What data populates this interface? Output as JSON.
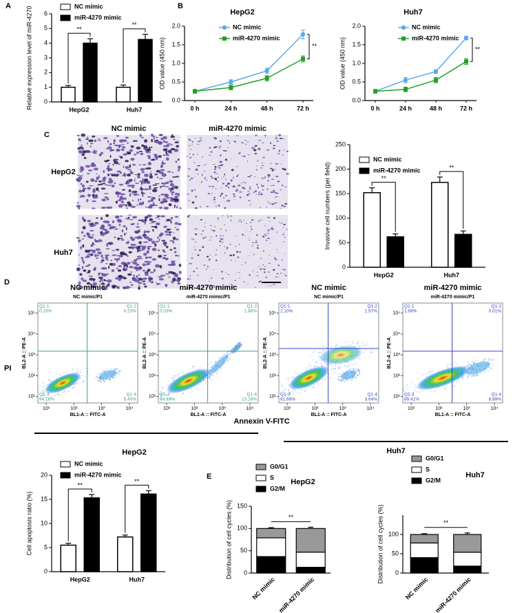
{
  "panel_labels": [
    "A",
    "B",
    "C",
    "D",
    "E"
  ],
  "invasion_images": {
    "columns": [
      "NC mimic",
      "miR-4270 mimic"
    ],
    "rows": [
      "HepG2",
      "Huh7"
    ]
  },
  "flow_axis_labels": {
    "y": "PI",
    "x": "Annexin V-FITC"
  },
  "flow_groups": [
    "HepG2",
    "Huh7"
  ],
  "chart_data": [
    {
      "type": "bar",
      "ylabel": "Relative expression level of miR-4270",
      "categories": [
        "HepG2",
        "Huh7"
      ],
      "series": [
        {
          "name": "NC mimic",
          "color": "#ffffff",
          "values": [
            1.0,
            1.0
          ],
          "errors": [
            0.12,
            0.15
          ]
        },
        {
          "name": "miR-4270 mimic",
          "color": "#000000",
          "values": [
            4.0,
            4.25
          ],
          "errors": [
            0.3,
            0.35
          ]
        }
      ],
      "ylim": [
        0,
        6
      ],
      "yticks": [
        0,
        1,
        2,
        3,
        4,
        5,
        6
      ],
      "significance": [
        "**",
        "**"
      ],
      "legend": "upper left"
    },
    {
      "type": "line",
      "title": "HepG2",
      "ylabel": "OD value (450 nm)",
      "categories": [
        "0 h",
        "24 h",
        "48 h",
        "72 h"
      ],
      "series": [
        {
          "name": "NC mimic",
          "color": "#5aa8ee",
          "marker": "circle",
          "values": [
            0.25,
            0.5,
            0.8,
            1.78
          ],
          "errors": [
            0.05,
            0.06,
            0.07,
            0.12
          ]
        },
        {
          "name": "miR-4270 mimic",
          "color": "#22a022",
          "marker": "square",
          "values": [
            0.25,
            0.35,
            0.6,
            1.12
          ],
          "errors": [
            0.05,
            0.06,
            0.07,
            0.08
          ]
        }
      ],
      "ylim": [
        0,
        2
      ],
      "yticks": [
        {
          "value": 0,
          "label": "0.0"
        },
        0.5,
        {
          "value": 1,
          "label": "1.0"
        },
        1.5,
        {
          "value": 2,
          "label": "2.0"
        }
      ],
      "significance": [
        "**"
      ],
      "legend": "upper left"
    },
    {
      "type": "line",
      "title": "Huh7",
      "ylabel": "OD value (450 nm)",
      "categories": [
        "0 h",
        "24 h",
        "48 h",
        "72 h"
      ],
      "series": [
        {
          "name": "NC mimic",
          "color": "#5aa8ee",
          "marker": "circle",
          "values": [
            0.25,
            0.55,
            0.78,
            1.68
          ],
          "errors": [
            0.05,
            0.07,
            0.05,
            0.05
          ]
        },
        {
          "name": "miR-4270 mimic",
          "color": "#22a022",
          "marker": "square",
          "values": [
            0.25,
            0.3,
            0.55,
            1.05
          ],
          "errors": [
            0.05,
            0.06,
            0.07,
            0.08
          ]
        }
      ],
      "ylim": [
        0,
        2
      ],
      "yticks": [
        {
          "value": 0,
          "label": "0.0"
        },
        0.5,
        {
          "value": 1,
          "label": "1.0"
        },
        1.5,
        {
          "value": 2,
          "label": "2.0"
        }
      ],
      "significance": [
        "**"
      ],
      "legend": "upper left"
    },
    {
      "type": "bar",
      "ylabel": "Invasive cell numbers (per field)",
      "categories": [
        "HepG2",
        "Huh7"
      ],
      "series": [
        {
          "name": "NC mimic",
          "color": "#ffffff",
          "values": [
            152,
            173
          ],
          "errors": [
            10,
            11
          ]
        },
        {
          "name": "miR-4270 mimic",
          "color": "#000000",
          "values": [
            62,
            67
          ],
          "errors": [
            6,
            7
          ]
        }
      ],
      "ylim": [
        0,
        250
      ],
      "yticks": [
        0,
        50,
        100,
        150,
        200,
        250
      ],
      "significance": [
        "**",
        "**"
      ],
      "legend": "upper left"
    },
    {
      "type": "density",
      "title": "NC mimic",
      "subtitle": "NC mimic/P1",
      "xlabel": "BL1-A :: FITC-A",
      "ylabel": "BL2-A :: PE-A",
      "xlog": true,
      "ylog": true,
      "xlim": [
        5,
        20000
      ],
      "ylim": [
        5,
        300000
      ],
      "xticks": [
        {
          "value": 10,
          "label": "10¹"
        },
        {
          "value": 100,
          "label": "10²"
        },
        {
          "value": 1000,
          "label": "10³"
        },
        {
          "value": 10000,
          "label": "10⁴"
        }
      ],
      "yticks": [
        {
          "value": 10,
          "label": "10¹"
        },
        {
          "value": 100,
          "label": "10²"
        },
        {
          "value": 1000,
          "label": "10³"
        },
        {
          "value": 10000,
          "label": "10⁴"
        },
        {
          "value": 100000,
          "label": "10⁵"
        }
      ],
      "gate": {
        "x": 300,
        "y": 1500
      },
      "gate_color": "#3a9e8c",
      "quadrants": [
        {
          "name": "Q1-1",
          "label": "0.19%"
        },
        {
          "name": "Q1-2",
          "label": "0.23%"
        },
        {
          "name": "Q1-3",
          "label": "94.18%"
        },
        {
          "name": "Q1-4",
          "label": "5.40%"
        }
      ]
    },
    {
      "type": "density",
      "title": "miR-4270 mimic",
      "subtitle": "miR-4270 mimic/P1",
      "xlabel": "BL1-A :: FITC-A",
      "ylabel": "BL2-A :: PE-A",
      "xlog": true,
      "ylog": true,
      "xlim": [
        5,
        20000
      ],
      "ylim": [
        5,
        300000
      ],
      "xticks": [
        {
          "value": 10,
          "label": "10¹"
        },
        {
          "value": 100,
          "label": "10²"
        },
        {
          "value": 1000,
          "label": "10³"
        },
        {
          "value": 10000,
          "label": "10⁴"
        }
      ],
      "yticks": [
        {
          "value": 10,
          "label": "10¹"
        },
        {
          "value": 100,
          "label": "10²"
        },
        {
          "value": 1000,
          "label": "10³"
        },
        {
          "value": 10000,
          "label": "10⁴"
        },
        {
          "value": 100000,
          "label": "10⁵"
        }
      ],
      "gate": {
        "x": 300,
        "y": 1500
      },
      "gate_color": "#3a9e8c",
      "quadrants": [
        {
          "name": "Q1-1",
          "label": "0.03%"
        },
        {
          "name": "Q1-2",
          "label": "1.86%"
        },
        {
          "name": "Q1-3",
          "label": "84.83%"
        },
        {
          "name": "Q1-4",
          "label": "13.28%"
        }
      ]
    },
    {
      "type": "density",
      "title": "NC mimic",
      "subtitle": "NC mimic/P1",
      "xlabel": "BL1-A :: FITC-A",
      "ylabel": "BL2-A :: PE-A",
      "xlog": true,
      "ylog": true,
      "xlim": [
        5,
        20000
      ],
      "ylim": [
        5,
        300000
      ],
      "xticks": [
        {
          "value": 10,
          "label": "10¹"
        },
        {
          "value": 100,
          "label": "10²"
        },
        {
          "value": 1000,
          "label": "10³"
        },
        {
          "value": 10000,
          "label": "10⁴"
        }
      ],
      "yticks": [
        {
          "value": 10,
          "label": "10¹"
        },
        {
          "value": 100,
          "label": "10²"
        },
        {
          "value": 1000,
          "label": "10³"
        },
        {
          "value": 10000,
          "label": "10⁴"
        },
        {
          "value": 100000,
          "label": "10⁵"
        }
      ],
      "gate": {
        "x": 300,
        "y": 2000
      },
      "gate_color": "#3344cc",
      "quadrants": [
        {
          "name": "Q1-1",
          "label": "2.10%"
        },
        {
          "name": "Q1-2",
          "label": "2.57%"
        },
        {
          "name": "Q1-3",
          "label": "91.69%"
        },
        {
          "name": "Q1-4",
          "label": "3.64%"
        }
      ]
    },
    {
      "type": "density",
      "title": "miR-4270 mimic",
      "subtitle": "miR-4270 mimic/P1",
      "xlabel": "BL1-A :: FITC-A",
      "ylabel": "BL2-A :: PE-A",
      "xlog": true,
      "ylog": true,
      "xlim": [
        5,
        20000
      ],
      "ylim": [
        5,
        300000
      ],
      "xticks": [
        {
          "value": 10,
          "label": "10¹"
        },
        {
          "value": 100,
          "label": "10²"
        },
        {
          "value": 1000,
          "label": "10³"
        },
        {
          "value": 10000,
          "label": "10⁴"
        }
      ],
      "yticks": [
        {
          "value": 10,
          "label": "10¹"
        },
        {
          "value": 100,
          "label": "10²"
        },
        {
          "value": 1000,
          "label": "10³"
        },
        {
          "value": 10000,
          "label": "10⁴"
        },
        {
          "value": 100000,
          "label": "10⁵"
        }
      ],
      "gate": {
        "x": 300,
        "y": 1500
      },
      "gate_color": "#3344cc",
      "quadrants": [
        {
          "name": "Q1-1",
          "label": "1.69%"
        },
        {
          "name": "Q1-2",
          "label": "0.01%"
        },
        {
          "name": "Q1-3",
          "label": "89.41%"
        },
        {
          "name": "Q1-4",
          "label": "8.89%"
        }
      ]
    },
    {
      "type": "bar",
      "ylabel": "Cell apoptosis ratio (%)",
      "categories": [
        "HepG2",
        "Huh7"
      ],
      "series": [
        {
          "name": "NC mimic",
          "color": "#ffffff",
          "values": [
            5.5,
            7.2
          ],
          "errors": [
            0.4,
            0.4
          ]
        },
        {
          "name": "miR-4270 mimic",
          "color": "#000000",
          "values": [
            15.3,
            16.1
          ],
          "errors": [
            0.7,
            0.7
          ]
        }
      ],
      "ylim": [
        0,
        20
      ],
      "yticks": [
        0,
        5,
        10,
        15,
        20
      ],
      "significance": [
        "**",
        "**"
      ],
      "legend": "upper left"
    },
    {
      "type": "bar",
      "stacked": true,
      "title": "HepG2",
      "ylabel": "Distribution of cell cycles (%)",
      "categories": [
        "NC mimic",
        "miR-4270 mimic"
      ],
      "series": [
        {
          "name": "G2/M",
          "color": "#000000",
          "values": [
            37,
            13
          ],
          "errors": [
            2,
            2
          ]
        },
        {
          "name": "S",
          "color": "#ffffff",
          "values": [
            42,
            34
          ],
          "errors": [
            2,
            2
          ]
        },
        {
          "name": "G0/G1",
          "color": "#999999",
          "values": [
            21,
            53
          ],
          "errors": [
            2,
            3
          ]
        }
      ],
      "ylim": [
        0,
        150
      ],
      "yticks": [
        0,
        50,
        100,
        150
      ],
      "significance": [
        "**"
      ],
      "legend": "upper left"
    },
    {
      "type": "bar",
      "stacked": true,
      "title": "Huh7",
      "ylabel": "Distribution of cell cycles (%)",
      "categories": [
        "NC mimic",
        "miR-4270 mimic"
      ],
      "series": [
        {
          "name": "G2/M",
          "color": "#000000",
          "values": [
            40,
            18
          ],
          "errors": [
            2,
            2
          ]
        },
        {
          "name": "S",
          "color": "#ffffff",
          "values": [
            38,
            36
          ],
          "errors": [
            2,
            3
          ]
        },
        {
          "name": "G0/G1",
          "color": "#999999",
          "values": [
            22,
            46
          ],
          "errors": [
            2,
            4
          ]
        }
      ],
      "ylim": [
        0,
        150
      ],
      "yticks": [
        0,
        50,
        100
      ],
      "significance": [
        "**"
      ],
      "legend": "upper left"
    }
  ]
}
